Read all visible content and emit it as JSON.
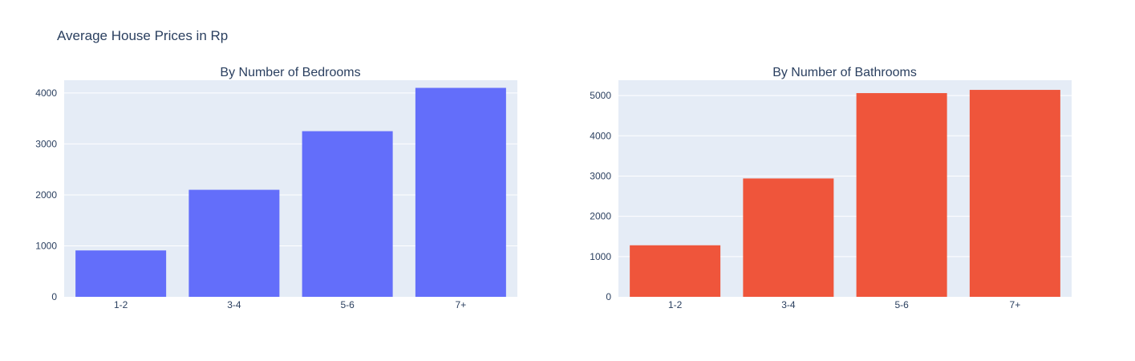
{
  "title": "Average House Prices in Rp",
  "chart_data": [
    {
      "type": "bar",
      "title": "By Number of Bedrooms",
      "categories": [
        "1-2",
        "3-4",
        "5-6",
        "7+"
      ],
      "values": [
        910,
        2100,
        3250,
        4100
      ],
      "ylim": [
        0,
        4250
      ],
      "yticks": [
        0,
        1000,
        2000,
        3000,
        4000
      ],
      "color": "#636efa",
      "grid": true
    },
    {
      "type": "bar",
      "title": "By Number of Bathrooms",
      "categories": [
        "1-2",
        "3-4",
        "5-6",
        "7+"
      ],
      "values": [
        1280,
        2940,
        5060,
        5140
      ],
      "ylim": [
        0,
        5380
      ],
      "yticks": [
        0,
        1000,
        2000,
        3000,
        4000,
        5000
      ],
      "color": "#ef553b",
      "grid": true
    }
  ]
}
